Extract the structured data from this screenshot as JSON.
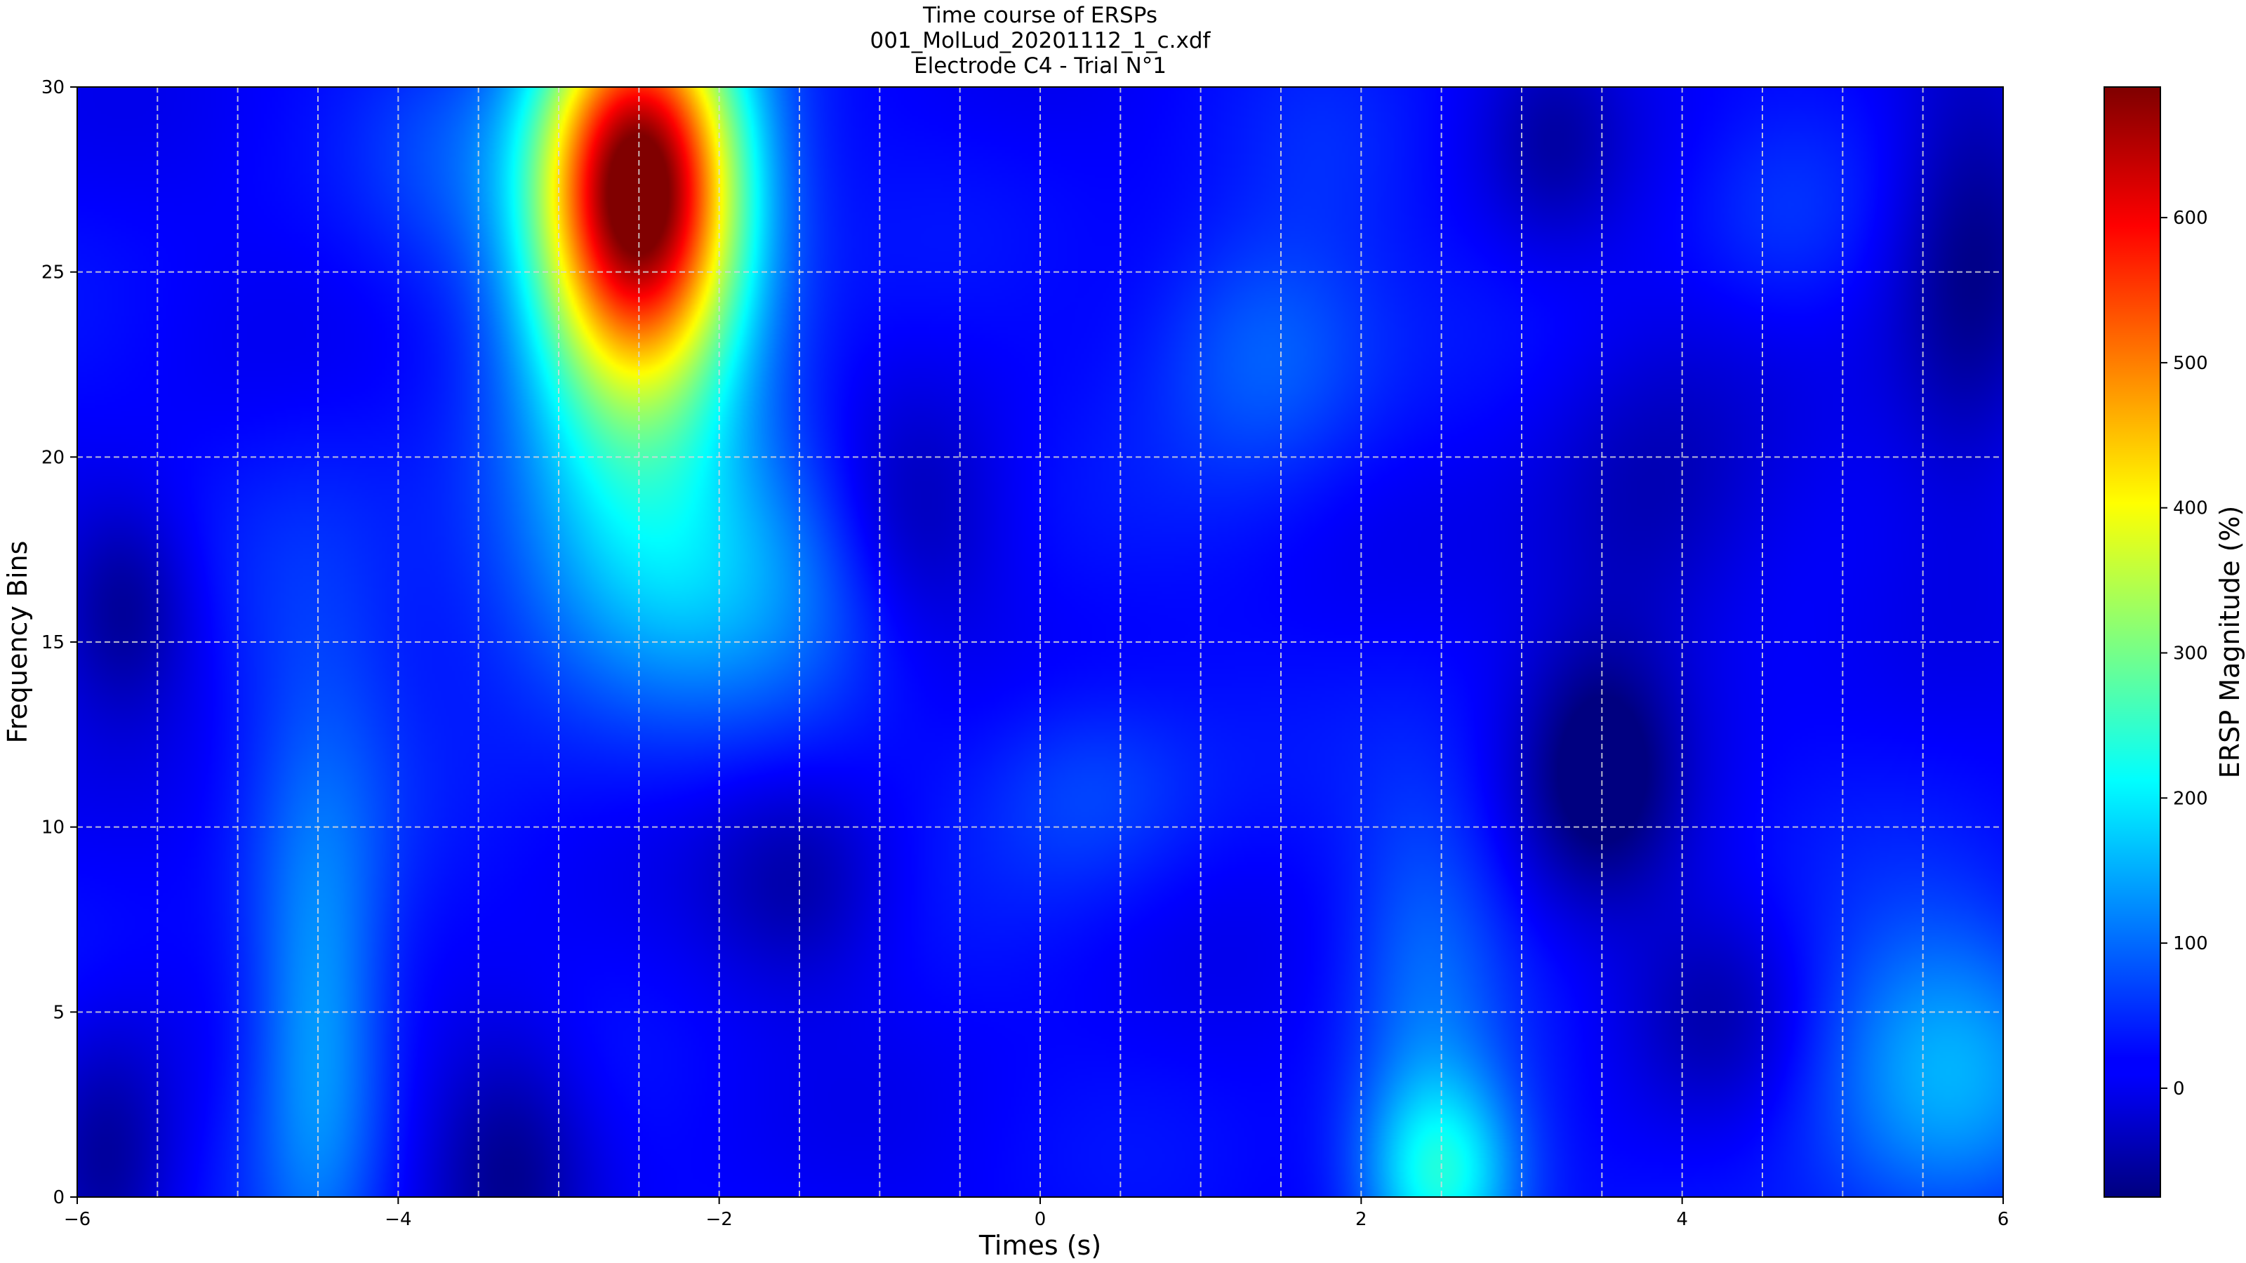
{
  "chart_data": {
    "type": "heatmap",
    "title": [
      "Time course of ERSPs",
      "001_MolLud_20201112_1_c.xdf",
      "Electrode C4 - Trial N°1"
    ],
    "xlabel": "Times (s)",
    "ylabel": "Frequency Bins",
    "colorbar_label": "ERSP Magnitude (%)",
    "colormap": "jet",
    "xlim": [
      -6,
      6
    ],
    "ylim": [
      0,
      30
    ],
    "clim": [
      -75,
      690
    ],
    "x_ticks": [
      -6,
      -4,
      -2,
      0,
      2,
      4,
      6
    ],
    "y_ticks": [
      0,
      5,
      10,
      15,
      20,
      25,
      30
    ],
    "colorbar_ticks": [
      0,
      100,
      200,
      300,
      400,
      500,
      600
    ],
    "grid": true,
    "grid_x_lines": [
      -5.5,
      -5,
      -4.5,
      -4,
      -3.5,
      -3,
      -2.5,
      -2,
      -1.5,
      -1,
      -0.5,
      0,
      0.5,
      1,
      1.5,
      2,
      2.5,
      3,
      3.5,
      4,
      4.5,
      5,
      5.5
    ],
    "grid_y_lines": [
      5,
      10,
      15,
      20,
      25
    ],
    "baseline": 20,
    "features": [
      {
        "t": -2.5,
        "f": 27.5,
        "value": 690,
        "st": 0.45,
        "sf": 3.5
      },
      {
        "t": -2.5,
        "f": 23,
        "value": 150,
        "st": 0.5,
        "sf": 4
      },
      {
        "t": -2.2,
        "f": 17,
        "value": 150,
        "st": 0.9,
        "sf": 3
      },
      {
        "t": -4.5,
        "f": 4,
        "value": 140,
        "st": 0.3,
        "sf": 4.5
      },
      {
        "t": -4.5,
        "f": 13,
        "value": 60,
        "st": 0.4,
        "sf": 5
      },
      {
        "t": 2.5,
        "f": 0.5,
        "value": 220,
        "st": 0.35,
        "sf": 2
      },
      {
        "t": 2.4,
        "f": 6,
        "value": 90,
        "st": 0.35,
        "sf": 4
      },
      {
        "t": 5.6,
        "f": 3.5,
        "value": 150,
        "st": 0.6,
        "sf": 3
      },
      {
        "t": 1.4,
        "f": 23,
        "value": 100,
        "st": 0.5,
        "sf": 2.5
      },
      {
        "t": 0.3,
        "f": 11,
        "value": 75,
        "st": 0.5,
        "sf": 2
      },
      {
        "t": -3.7,
        "f": 28,
        "value": 60,
        "st": 0.4,
        "sf": 2.5
      },
      {
        "t": 4.6,
        "f": 26.5,
        "value": 50,
        "st": 0.4,
        "sf": 2
      },
      {
        "t": 1.8,
        "f": 28,
        "value": 40,
        "st": 0.4,
        "sf": 2
      },
      {
        "t": 3.5,
        "f": 11.5,
        "value": -90,
        "st": 0.35,
        "sf": 2.5
      },
      {
        "t": 5.8,
        "f": 25,
        "value": -70,
        "st": 0.35,
        "sf": 4
      },
      {
        "t": -5.7,
        "f": 16,
        "value": -60,
        "st": 0.3,
        "sf": 2
      },
      {
        "t": -3.3,
        "f": 1,
        "value": -60,
        "st": 0.35,
        "sf": 2.5
      },
      {
        "t": -0.8,
        "f": 18,
        "value": -50,
        "st": 0.4,
        "sf": 2.5
      },
      {
        "t": 3.8,
        "f": 18.5,
        "value": -40,
        "st": 0.5,
        "sf": 3
      },
      {
        "t": -5.8,
        "f": 1,
        "value": -55,
        "st": 0.3,
        "sf": 2.5
      },
      {
        "t": -1.5,
        "f": 8.5,
        "value": -40,
        "st": 0.4,
        "sf": 2
      },
      {
        "t": 4.2,
        "f": 5,
        "value": -35,
        "st": 0.4,
        "sf": 2
      },
      {
        "t": 3.2,
        "f": 28.5,
        "value": -35,
        "st": 0.3,
        "sf": 2
      }
    ]
  }
}
